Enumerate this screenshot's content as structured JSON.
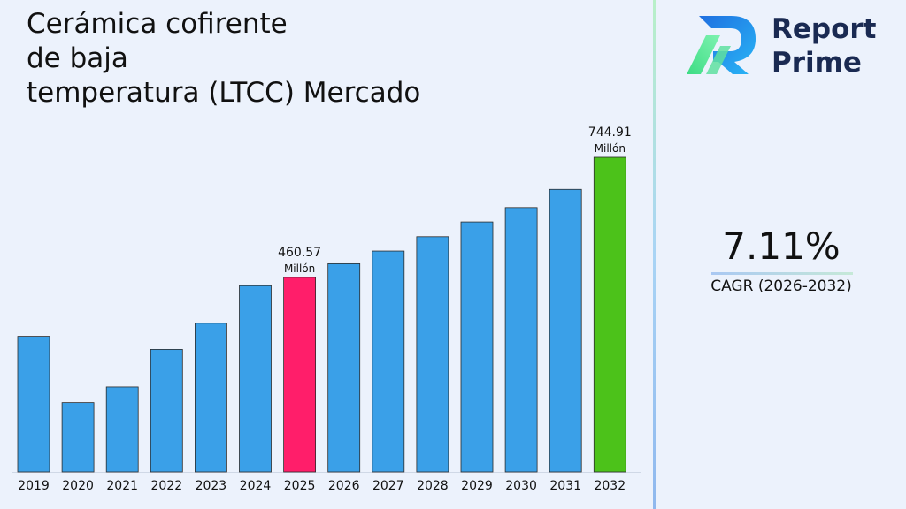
{
  "title_lines": [
    "Cerámica cofirente",
    "de baja",
    "temperatura (LTCC) Mercado"
  ],
  "brand": {
    "line1": "Report",
    "line2": "Prime",
    "logo_icon": "report-prime-logo-icon",
    "colors": {
      "text": "#1a2a52",
      "blue": "#1f6fe0",
      "green": "#3ddc84"
    }
  },
  "cagr": {
    "value": "7.11%",
    "label": "CAGR (2026-2032)"
  },
  "chart_data": {
    "type": "bar",
    "title": "Cerámica cofirente de baja temperatura (LTCC) Mercado",
    "categories": [
      "2019",
      "2020",
      "2021",
      "2022",
      "2023",
      "2024",
      "2025",
      "2026",
      "2027",
      "2028",
      "2029",
      "2030",
      "2031",
      "2032"
    ],
    "values": [
      321,
      164,
      201,
      290,
      352,
      441,
      460.57,
      493,
      523,
      557,
      592,
      626,
      669,
      744.91
    ],
    "ylim": [
      0,
      744.91
    ],
    "grid": false,
    "bar_colors": {
      "default": "#3aa0e8",
      "highlight_2025": "#ff1e6a",
      "highlight_2032": "#4cc21a"
    },
    "highlights": {
      "2025": "highlight_2025",
      "2032": "highlight_2032"
    },
    "annotations": [
      {
        "category": "2025",
        "value_text": "460.57",
        "unit_text": "Millón"
      },
      {
        "category": "2032",
        "value_text": "744.91",
        "unit_text": "Millón"
      }
    ]
  }
}
